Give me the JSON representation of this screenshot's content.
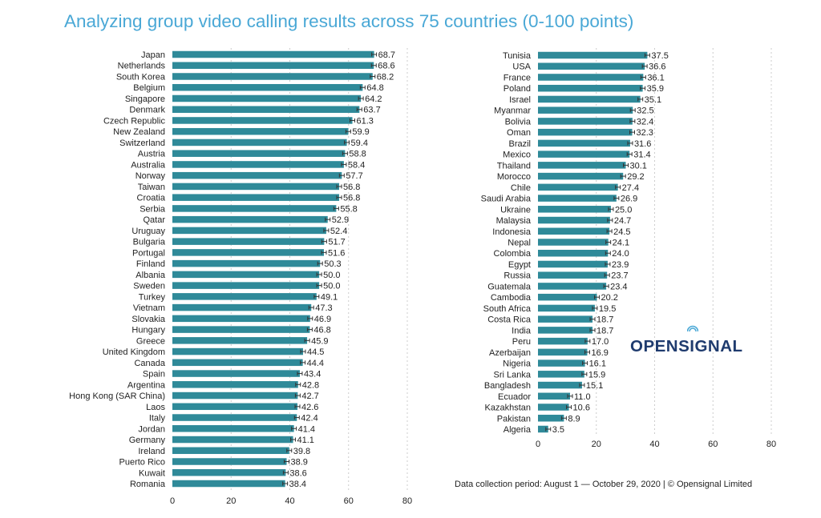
{
  "title": "Analyzing group video calling results across 75 countries (0-100 points)",
  "footer": "Data collection period: August 1 — October 29, 2020 | © Opensignal Limited",
  "logo": {
    "text_before": "OPENS",
    "text_signal_letter": "I",
    "text_after": "GNAL",
    "icon": "signal-waves-icon"
  },
  "colors": {
    "title": "#4aa8d6",
    "bar": "#2f8a99",
    "error_bar": "#333333",
    "grid": "#cccccc",
    "logo": "#1f3b6e",
    "logo_accent": "#4aa8d6"
  },
  "chart_data": [
    {
      "type": "bar",
      "orientation": "horizontal",
      "xlim": [
        0,
        80
      ],
      "xticks": [
        0,
        20,
        40,
        60,
        80
      ],
      "grid": "vertical dotted",
      "error_bars": true,
      "categories": [
        "Japan",
        "Netherlands",
        "South Korea",
        "Belgium",
        "Singapore",
        "Denmark",
        "Czech Republic",
        "New Zealand",
        "Switzerland",
        "Austria",
        "Australia",
        "Norway",
        "Taiwan",
        "Croatia",
        "Serbia",
        "Qatar",
        "Uruguay",
        "Bulgaria",
        "Portugal",
        "Finland",
        "Albania",
        "Sweden",
        "Turkey",
        "Vietnam",
        "Slovakia",
        "Hungary",
        "Greece",
        "United Kingdom",
        "Canada",
        "Spain",
        "Argentina",
        "Hong Kong (SAR China)",
        "Laos",
        "Italy",
        "Jordan",
        "Germany",
        "Ireland",
        "Puerto Rico",
        "Kuwait",
        "Romania"
      ],
      "values": [
        68.7,
        68.6,
        68.2,
        64.8,
        64.2,
        63.7,
        61.3,
        59.9,
        59.4,
        58.8,
        58.4,
        57.7,
        56.8,
        56.8,
        55.8,
        52.9,
        52.4,
        51.7,
        51.6,
        50.3,
        50.0,
        50.0,
        49.1,
        47.3,
        46.9,
        46.8,
        45.9,
        44.5,
        44.4,
        43.4,
        42.8,
        42.7,
        42.6,
        42.4,
        41.4,
        41.1,
        39.8,
        38.9,
        38.6,
        38.4
      ],
      "value_labels": [
        "68.7",
        "68.6",
        "68.2",
        "64.8",
        "64.2",
        "63.7",
        "61.3",
        "59.9",
        "59.4",
        "58.8",
        "58.4",
        "57.7",
        "56.8",
        "56.8",
        "55.8",
        "52.9",
        "52.4",
        "51.7",
        "51.6",
        "50.3",
        "50.0",
        "50.0",
        "49.1",
        "47.3",
        "46.9",
        "46.8",
        "45.9",
        "44.5",
        "44.4",
        "43.4",
        "42.8",
        "42.7",
        "42.6",
        "42.4",
        "41.4",
        "41.1",
        "39.8",
        "38.9",
        "38.6",
        "38.4"
      ]
    },
    {
      "type": "bar",
      "orientation": "horizontal",
      "xlim": [
        0,
        80
      ],
      "xticks": [
        0,
        20,
        40,
        60,
        80
      ],
      "grid": "vertical dotted",
      "error_bars": true,
      "categories": [
        "Tunisia",
        "USA",
        "France",
        "Poland",
        "Israel",
        "Myanmar",
        "Bolivia",
        "Oman",
        "Brazil",
        "Mexico",
        "Thailand",
        "Morocco",
        "Chile",
        "Saudi Arabia",
        "Ukraine",
        "Malaysia",
        "Indonesia",
        "Nepal",
        "Colombia",
        "Egypt",
        "Russia",
        "Guatemala",
        "Cambodia",
        "South Africa",
        "Costa Rica",
        "India",
        "Peru",
        "Azerbaijan",
        "Nigeria",
        "Sri Lanka",
        "Bangladesh",
        "Ecuador",
        "Kazakhstan",
        "Pakistan",
        "Algeria"
      ],
      "values": [
        37.5,
        36.6,
        36.1,
        35.9,
        35.1,
        32.5,
        32.4,
        32.3,
        31.6,
        31.4,
        30.1,
        29.2,
        27.4,
        26.9,
        25.0,
        24.7,
        24.5,
        24.1,
        24.0,
        23.9,
        23.7,
        23.4,
        20.2,
        19.5,
        18.7,
        18.7,
        17.0,
        16.9,
        16.1,
        15.9,
        15.1,
        11.0,
        10.6,
        8.9,
        3.5
      ],
      "value_labels": [
        "37.5",
        "36.6",
        "36.1",
        "35.9",
        "35.1",
        "32.5",
        "32.4",
        "32.3",
        "31.6",
        "31.4",
        "30.1",
        "29.2",
        "27.4",
        "26.9",
        "25.0",
        "24.7",
        "24.5",
        "24.1",
        "24.0",
        "23.9",
        "23.7",
        "23.4",
        "20.2",
        "19.5",
        "18.7",
        "18.7",
        "17.0",
        "16.9",
        "16.1",
        "15.9",
        "15.1",
        "11.0",
        "10.6",
        "8.9",
        "3.5"
      ]
    }
  ]
}
